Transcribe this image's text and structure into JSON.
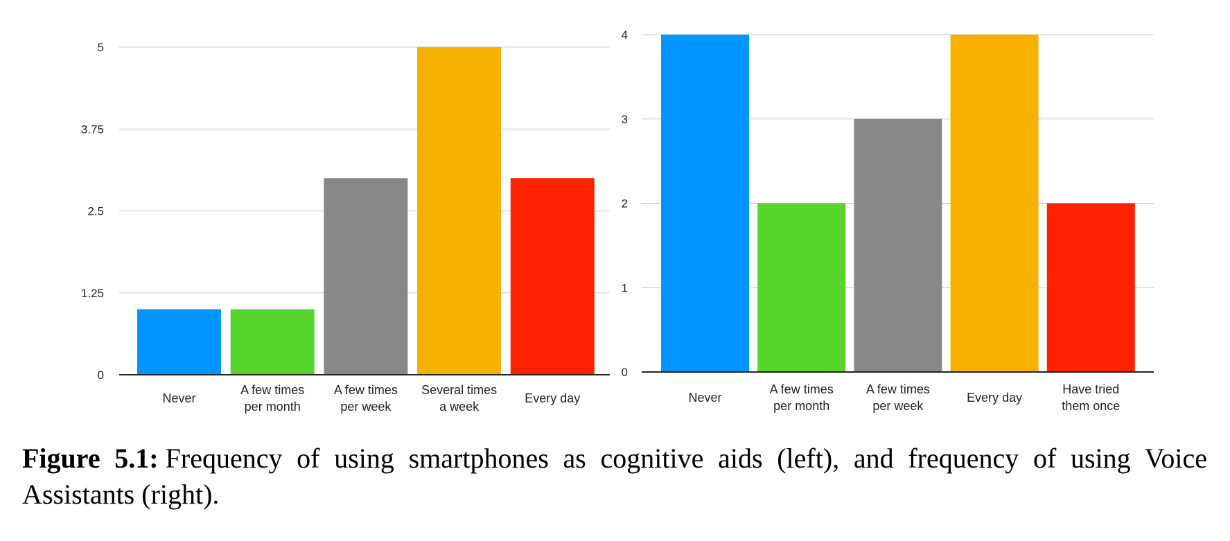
{
  "chart_data": [
    {
      "type": "bar",
      "categories": [
        [
          "Never"
        ],
        [
          "A few times",
          "per month"
        ],
        [
          "A few times",
          "per week"
        ],
        [
          "Several times",
          "a week"
        ],
        [
          "Every day"
        ]
      ],
      "values": [
        1,
        1,
        3,
        5,
        3
      ],
      "colors": [
        "#0096ff",
        "#57d52c",
        "#888888",
        "#f6b100",
        "#ff2200"
      ],
      "yticks": [
        "0",
        "1.25",
        "2.5",
        "3.75",
        "5"
      ],
      "ylim": [
        0,
        5
      ],
      "title": "",
      "xlabel": "",
      "ylabel": "",
      "grid": true
    },
    {
      "type": "bar",
      "categories": [
        [
          "Never"
        ],
        [
          "A few times",
          "per month"
        ],
        [
          "A few times",
          "per week"
        ],
        [
          "Every day"
        ],
        [
          "Have tried",
          "them once"
        ]
      ],
      "values": [
        4,
        2,
        3,
        4,
        2
      ],
      "colors": [
        "#0096ff",
        "#57d52c",
        "#888888",
        "#f6b100",
        "#ff2200"
      ],
      "yticks": [
        "0",
        "1",
        "2",
        "3",
        "4"
      ],
      "ylim": [
        0,
        4
      ],
      "title": "",
      "xlabel": "",
      "ylabel": "",
      "grid": true
    }
  ],
  "caption": {
    "label": "Figure 5.1:",
    "text": "Frequency of using smartphones as cognitive aids (left), and frequency of using Voice Assistants (right)."
  }
}
